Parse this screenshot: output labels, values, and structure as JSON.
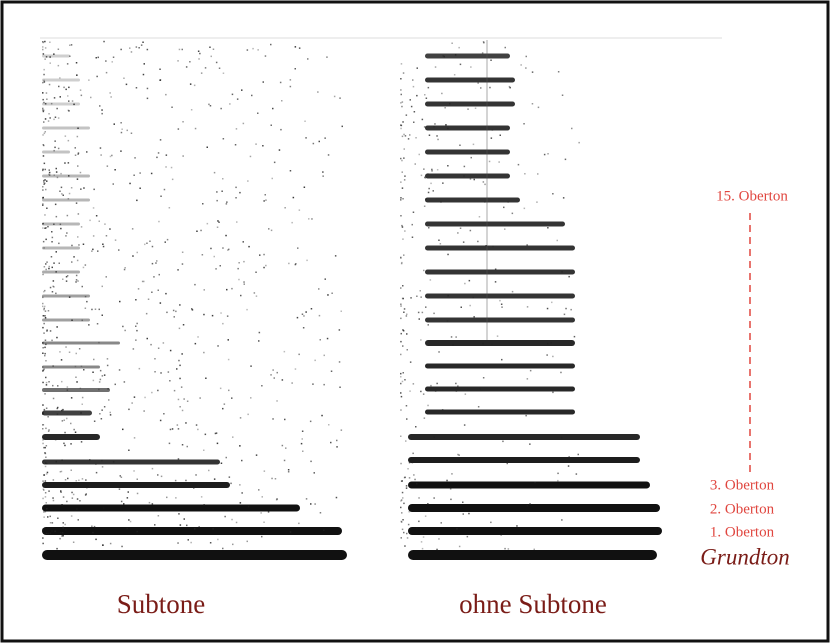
{
  "spectrograms": [
    {
      "label": "Subtone"
    },
    {
      "label": "ohne Subtone"
    }
  ],
  "annotations": {
    "top": "15. Oberton",
    "harmonics": [
      "3. Oberton",
      "2. Oberton",
      "1. Oberton"
    ],
    "fundamental": "Grundton"
  }
}
